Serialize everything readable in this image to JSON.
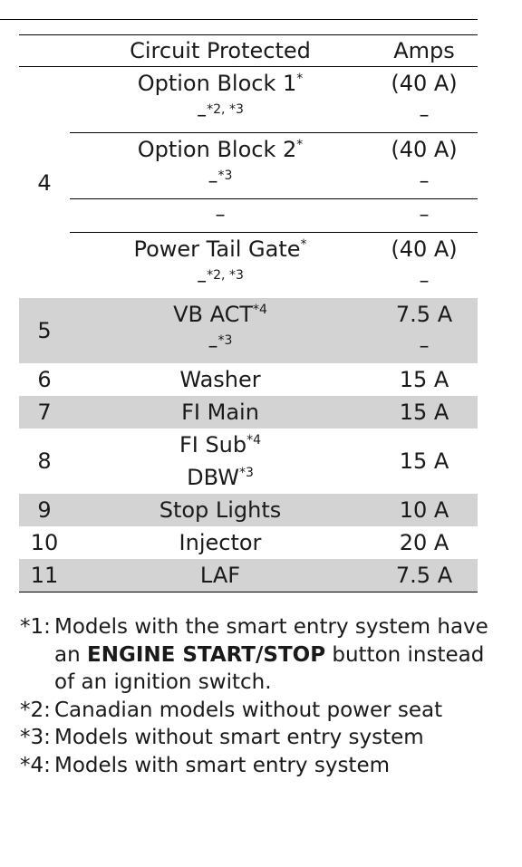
{
  "table": {
    "headers": {
      "number": "",
      "circuit": "Circuit Protected",
      "amps": "Amps"
    },
    "group4": {
      "number": "4",
      "rows": [
        {
          "circuit": "Option Block 1",
          "circuit_sup": "*",
          "circuit2": "–",
          "circuit2_sup": "*2, *3",
          "amps": "(40 A)",
          "amps2": "–"
        },
        {
          "circuit": "Option Block 2",
          "circuit_sup": "*",
          "circuit2": "–",
          "circuit2_sup": "*3",
          "amps": "(40 A)",
          "amps2": "–"
        },
        {
          "circuit": "–",
          "amps": "–"
        },
        {
          "circuit": "Power Tail Gate",
          "circuit_sup": "*",
          "circuit2": "–",
          "circuit2_sup": "*2, *3",
          "amps": "(40 A)",
          "amps2": "–"
        }
      ]
    },
    "row5": {
      "number": "5",
      "circuit": "VB ACT",
      "circuit_sup": "*4",
      "circuit2": "–",
      "circuit2_sup": "*3",
      "amps": "7.5 A",
      "amps2": "–"
    },
    "row6": {
      "number": "6",
      "circuit": "Washer",
      "amps": "15 A"
    },
    "row7": {
      "number": "7",
      "circuit": "FI Main",
      "amps": "15 A"
    },
    "row8": {
      "number": "8",
      "circuit": "FI Sub",
      "circuit_sup": "*4",
      "circuit2": "DBW",
      "circuit2_sup": "*3",
      "amps": "15 A"
    },
    "row9": {
      "number": "9",
      "circuit": "Stop Lights",
      "amps": "10 A"
    },
    "row10": {
      "number": "10",
      "circuit": "Injector",
      "amps": "20 A"
    },
    "row11": {
      "number": "11",
      "circuit": "LAF",
      "amps": "7.5 A"
    }
  },
  "notes": [
    {
      "key": "*1:",
      "text_before": "Models with the smart entry system have an ",
      "bold": "ENGINE START/STOP",
      "text_after": " button instead of an ignition switch."
    },
    {
      "key": "*2:",
      "text": "Canadian models without power seat"
    },
    {
      "key": "*3:",
      "text": "Models without smart entry system"
    },
    {
      "key": "*4:",
      "text": "Models with smart entry system"
    }
  ],
  "colors": {
    "shade": "#d3d3d3",
    "rule": "#000000"
  }
}
